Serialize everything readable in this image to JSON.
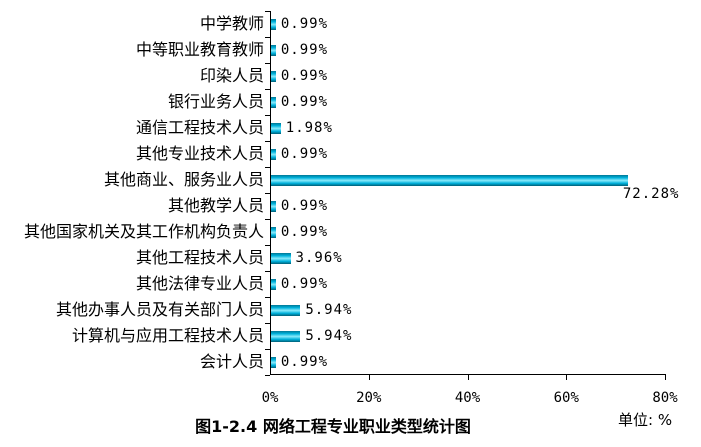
{
  "chart_data": {
    "type": "bar",
    "orientation": "horizontal",
    "title": "图1-2.4 网络工程专业职业类型统计图",
    "unit_label": "单位: %",
    "categories": [
      "中学教师",
      "中等职业教育教师",
      "印染人员",
      "银行业务人员",
      "通信工程技术人员",
      "其他专业技术人员",
      "其他商业、服务业人员",
      "其他教学人员",
      "其他国家机关及其工作机构负责人",
      "其他工程技术人员",
      "其他法律专业人员",
      "其他办事人员及有关部门人员",
      "计算机与应用工程技术人员",
      "会计人员"
    ],
    "values": [
      0.99,
      0.99,
      0.99,
      0.99,
      1.98,
      0.99,
      72.28,
      0.99,
      0.99,
      3.96,
      0.99,
      5.94,
      5.94,
      0.99
    ],
    "value_labels": [
      "0.99%",
      "0.99%",
      "0.99%",
      "0.99%",
      "1.98%",
      "0.99%",
      "72.28%",
      "0.99%",
      "0.99%",
      "3.96%",
      "0.99%",
      "5.94%",
      "5.94%",
      "0.99%"
    ],
    "x_ticks": [
      {
        "value": 0,
        "label": "0%"
      },
      {
        "value": 20,
        "label": "20%"
      },
      {
        "value": 40,
        "label": "40%"
      },
      {
        "value": 60,
        "label": "60%"
      },
      {
        "value": 80,
        "label": "80%"
      }
    ],
    "xlim": [
      0,
      80
    ],
    "grid": false,
    "legend": "none",
    "label_below_index": 6,
    "colors": {
      "bar_dark_top": "#007694",
      "bar_main": "#00b2dc",
      "bar_light": "#8aeafb",
      "bar_dark_bottom": "#005d76",
      "axis": "#000000",
      "text": "#000000",
      "background": "#ffffff"
    }
  }
}
